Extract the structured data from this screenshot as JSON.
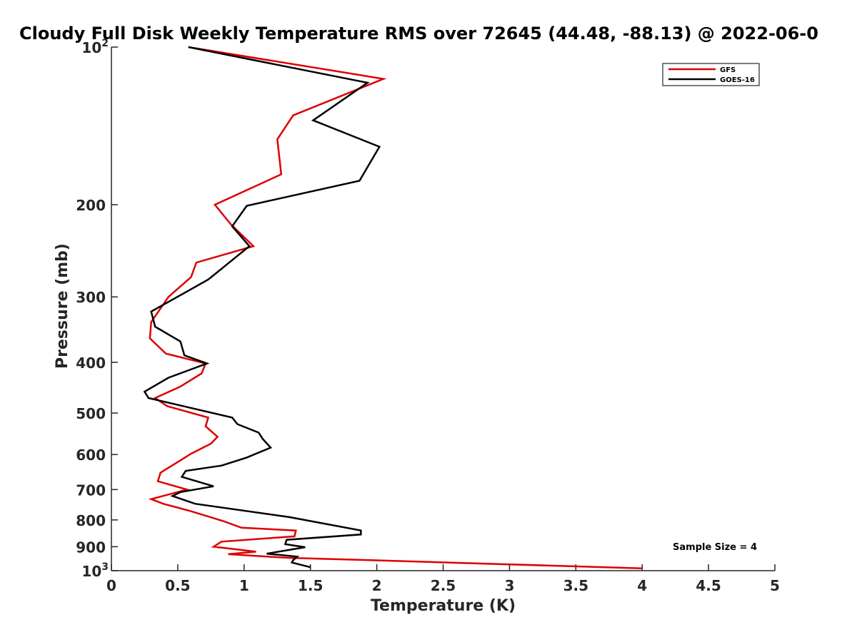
{
  "chart_data": {
    "type": "line",
    "title": "Cloudy Full Disk Weekly Temperature RMS over 72645 (44.48, -88.13) @ 2022-06-0",
    "xlabel": "Temperature (K)",
    "ylabel": "Pressure (mb)",
    "xlim": [
      0,
      5
    ],
    "ylim": [
      100,
      1000
    ],
    "y_scale": "log",
    "y_reversed": true,
    "grid": false,
    "legend_position": "top-right",
    "x_ticks": [
      "0",
      "0.5",
      "1",
      "1.5",
      "2",
      "2.5",
      "3",
      "3.5",
      "4",
      "4.5",
      "5"
    ],
    "y_ticks": [
      {
        "value": 100,
        "label": "10",
        "sup": "2"
      },
      {
        "value": 200,
        "label": "200",
        "sup": ""
      },
      {
        "value": 300,
        "label": "300",
        "sup": ""
      },
      {
        "value": 400,
        "label": "400",
        "sup": ""
      },
      {
        "value": 500,
        "label": "500",
        "sup": ""
      },
      {
        "value": 600,
        "label": "600",
        "sup": ""
      },
      {
        "value": 700,
        "label": "700",
        "sup": ""
      },
      {
        "value": 800,
        "label": "800",
        "sup": ""
      },
      {
        "value": 900,
        "label": "900",
        "sup": ""
      },
      {
        "value": 1000,
        "label": "10",
        "sup": "3"
      }
    ],
    "annotation": "Sample Size = 4",
    "series": [
      {
        "name": "GFS",
        "color": "#dd0000",
        "points": [
          [
            0.58,
            100
          ],
          [
            2.05,
            115
          ],
          [
            1.37,
            135
          ],
          [
            1.25,
            150
          ],
          [
            1.28,
            175
          ],
          [
            0.78,
            200
          ],
          [
            0.9,
            218
          ],
          [
            1.07,
            240
          ],
          [
            0.64,
            258
          ],
          [
            0.6,
            275
          ],
          [
            0.43,
            300
          ],
          [
            0.3,
            335
          ],
          [
            0.29,
            360
          ],
          [
            0.41,
            385
          ],
          [
            0.71,
            402
          ],
          [
            0.68,
            420
          ],
          [
            0.52,
            445
          ],
          [
            0.33,
            468
          ],
          [
            0.42,
            485
          ],
          [
            0.73,
            510
          ],
          [
            0.71,
            530
          ],
          [
            0.8,
            555
          ],
          [
            0.75,
            572
          ],
          [
            0.6,
            598
          ],
          [
            0.37,
            650
          ],
          [
            0.35,
            675
          ],
          [
            0.57,
            700
          ],
          [
            0.3,
            730
          ],
          [
            0.39,
            745
          ],
          [
            0.6,
            770
          ],
          [
            0.85,
            805
          ],
          [
            0.98,
            828
          ],
          [
            1.39,
            838
          ],
          [
            1.38,
            860
          ],
          [
            0.83,
            880
          ],
          [
            0.77,
            900
          ],
          [
            1.09,
            920
          ],
          [
            0.88,
            930
          ],
          [
            1.33,
            945
          ],
          [
            1.95,
            955
          ],
          [
            4.0,
            990
          ]
        ]
      },
      {
        "name": "GOES-16",
        "color": "#000000",
        "points": [
          [
            0.58,
            100
          ],
          [
            1.93,
            117
          ],
          [
            1.52,
            138
          ],
          [
            2.02,
            155
          ],
          [
            1.87,
            180
          ],
          [
            1.02,
            201
          ],
          [
            0.91,
            220
          ],
          [
            1.04,
            240
          ],
          [
            0.73,
            278
          ],
          [
            0.3,
            320
          ],
          [
            0.33,
            342
          ],
          [
            0.52,
            365
          ],
          [
            0.55,
            388
          ],
          [
            0.72,
            402
          ],
          [
            0.43,
            428
          ],
          [
            0.25,
            455
          ],
          [
            0.28,
            468
          ],
          [
            0.91,
            510
          ],
          [
            0.95,
            525
          ],
          [
            1.11,
            545
          ],
          [
            1.14,
            560
          ],
          [
            1.2,
            582
          ],
          [
            1.02,
            608
          ],
          [
            0.83,
            630
          ],
          [
            0.56,
            645
          ],
          [
            0.53,
            662
          ],
          [
            0.77,
            690
          ],
          [
            0.52,
            708
          ],
          [
            0.46,
            720
          ],
          [
            0.63,
            745
          ],
          [
            1.34,
            790
          ],
          [
            1.88,
            838
          ],
          [
            1.88,
            853
          ],
          [
            1.32,
            873
          ],
          [
            1.31,
            890
          ],
          [
            1.46,
            902
          ],
          [
            1.17,
            928
          ],
          [
            1.4,
            940
          ],
          [
            1.37,
            955
          ],
          [
            1.36,
            965
          ],
          [
            1.5,
            985
          ]
        ]
      }
    ]
  }
}
